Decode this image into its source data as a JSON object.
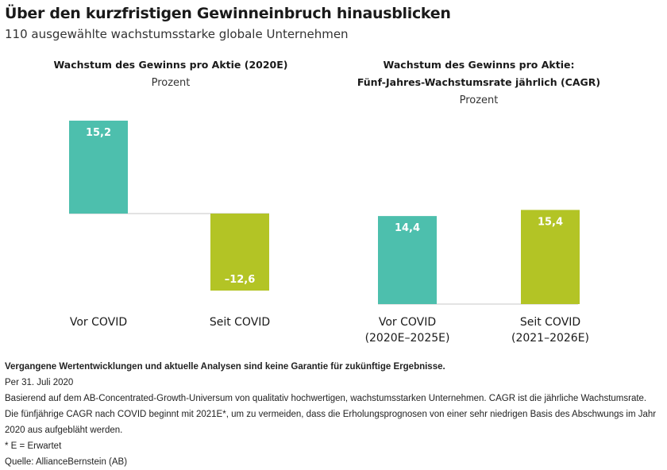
{
  "header": {
    "title": "Über den kurzfristigen Gewinneinbruch hinausblicken",
    "subtitle": "110 ausgewählte wachstumsstarke globale Unternehmen"
  },
  "colors": {
    "pre_covid": "#4dbfad",
    "since_covid": "#b3c425",
    "baseline": "#e3e3e3"
  },
  "chart_data": [
    {
      "type": "bar",
      "title_lines": [
        "Wachstum des Gewinns pro Aktie (2020E)"
      ],
      "unit": "Prozent",
      "categories": [
        [
          "Vor COVID"
        ],
        [
          "Seit COVID"
        ]
      ],
      "values": [
        15.2,
        -12.6
      ],
      "value_labels": [
        "15,2",
        "–12,6"
      ]
    },
    {
      "type": "bar",
      "title_lines": [
        "Wachstum des Gewinns pro Aktie:",
        "Fünf-Jahres-Wachstumsrate jährlich (CAGR)"
      ],
      "unit": "Prozent",
      "categories": [
        [
          "Vor COVID",
          "(2020E–2025E)"
        ],
        [
          "Seit COVID",
          "(2021–2026E)"
        ]
      ],
      "values": [
        14.4,
        15.4
      ],
      "value_labels": [
        "14,4",
        "15,4"
      ]
    }
  ],
  "footer": {
    "disclaimer": "Vergangene Wertentwicklungen und aktuelle Analysen sind keine Garantie für zukünftige Ergebnisse.",
    "date": "Per 31. Juli 2020",
    "note_1": "Basierend auf dem AB-Concentrated-Growth-Universum von qualitativ hochwertigen, wachstumsstarken Unternehmen. CAGR ist die jährliche Wachstumsrate.",
    "note_2": "Die fünfjährige CAGR nach COVID beginnt mit 2021E*, um zu vermeiden, dass die Erholungsprognosen von einer sehr niedrigen Basis des Abschwungs im Jahr 2020 aus aufgebläht werden.",
    "estimate_note": "* E = Erwartet",
    "source": "Quelle: AllianceBernstein (AB)"
  }
}
